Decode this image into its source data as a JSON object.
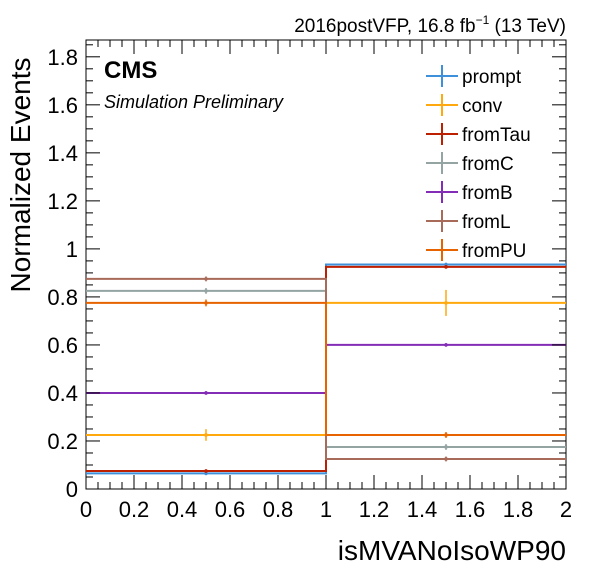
{
  "header": {
    "lumi_prefix": "2016postVFP, 16.8 fb",
    "lumi_exp": "−1",
    "lumi_suffix": " (13 TeV)"
  },
  "cms_label": "CMS",
  "cms_sublabel": "Simulation Preliminary",
  "chart_data": {
    "type": "histogram",
    "xlabel": "isMVANoIsoWP90",
    "ylabel": "Normalized Events",
    "xlim": [
      0,
      2
    ],
    "ylim": [
      0,
      1.87
    ],
    "bin_edges": [
      0,
      1,
      2
    ],
    "x_ticks": [
      "0",
      "0.2",
      "0.4",
      "0.6",
      "0.8",
      "1",
      "1.2",
      "1.4",
      "1.6",
      "1.8",
      "2"
    ],
    "y_ticks": [
      "0",
      "0.2",
      "0.4",
      "0.6",
      "0.8",
      "1",
      "1.2",
      "1.4",
      "1.6",
      "1.8"
    ],
    "legend_position": "top-right",
    "series": [
      {
        "name": "prompt",
        "color": "#3f90da",
        "values": [
          0.065,
          0.935
        ],
        "errors": [
          0.003,
          0.003
        ]
      },
      {
        "name": "conv",
        "color": "#ffa90e",
        "values": [
          0.225,
          0.775
        ],
        "errors": [
          0.02,
          0.05
        ]
      },
      {
        "name": "fromTau",
        "color": "#bd1f01",
        "values": [
          0.075,
          0.925
        ],
        "errors": [
          0.003,
          0.003
        ]
      },
      {
        "name": "fromC",
        "color": "#94a4a2",
        "values": [
          0.825,
          0.175
        ],
        "errors": [
          0.008,
          0.008
        ]
      },
      {
        "name": "fromB",
        "color": "#832db6",
        "values": [
          0.4,
          0.6
        ],
        "errors": [
          0.003,
          0.003
        ]
      },
      {
        "name": "fromL",
        "color": "#a96b59",
        "values": [
          0.875,
          0.125
        ],
        "errors": [
          0.006,
          0.006
        ]
      },
      {
        "name": "fromPU",
        "color": "#e76300",
        "values": [
          0.775,
          0.225
        ],
        "errors": [
          0.01,
          0.008
        ]
      }
    ]
  }
}
